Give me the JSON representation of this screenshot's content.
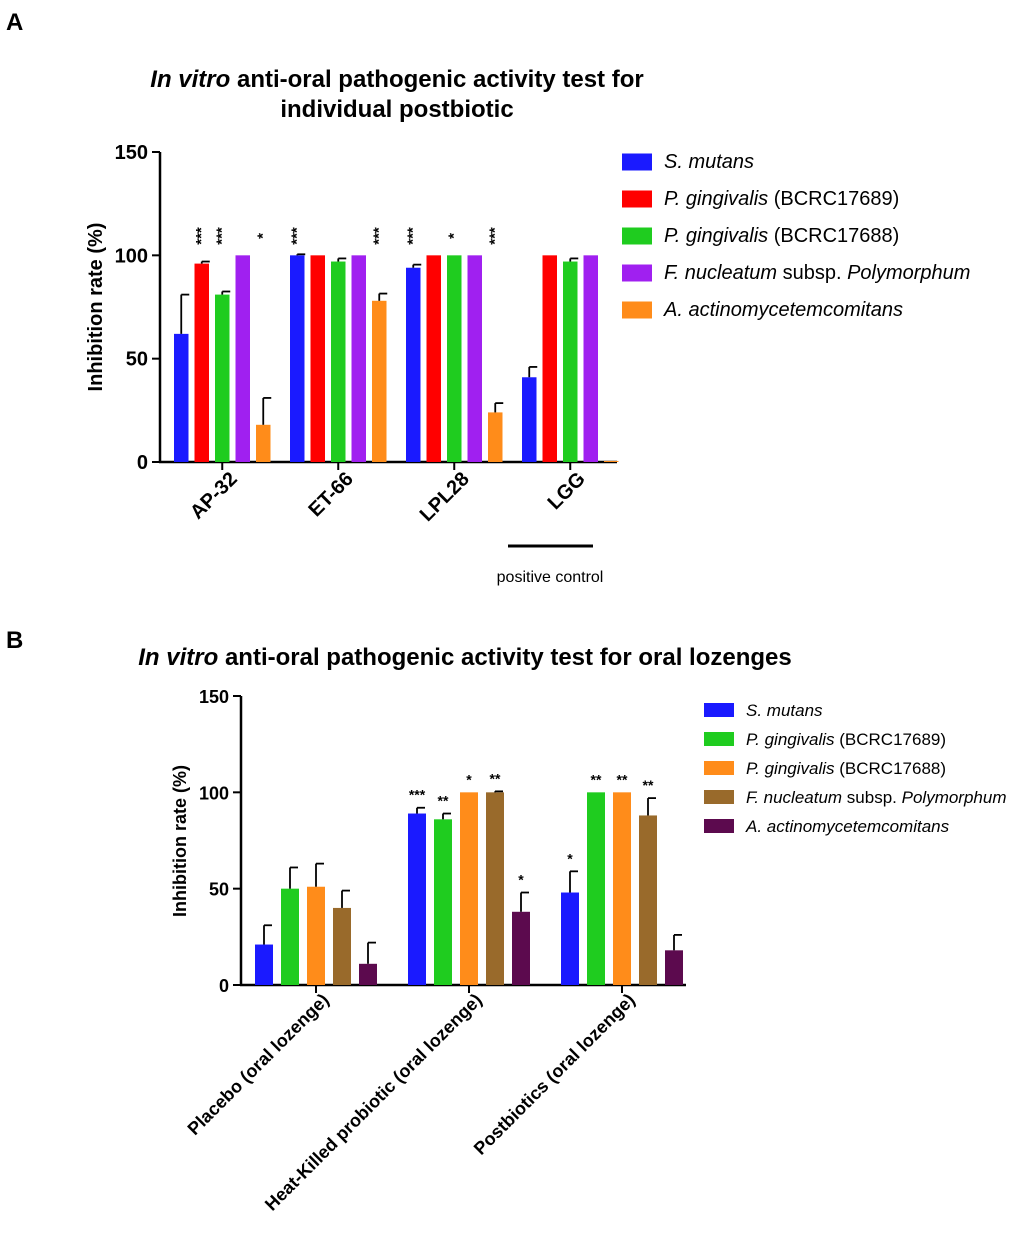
{
  "chart_data": [
    {
      "type": "bar",
      "panel": "A",
      "title_italic": "In vitro",
      "title_rest_line1": " anti-oral pathogenic activity test for",
      "title_line2": "individual postbiotic",
      "ylabel": "Inhibition rate (%)",
      "ylim": [
        0,
        150
      ],
      "yticks": [
        "0",
        "50",
        "100",
        "150"
      ],
      "categories": [
        "AP-32",
        "ET-66",
        "LPL28",
        "LGG"
      ],
      "bracket_label": "positive control",
      "series": [
        {
          "italic": "S. mutans",
          "rest": "",
          "color": "#1a1aff",
          "values": [
            62,
            100,
            94,
            41
          ],
          "errors": [
            19,
            0.5,
            1.5,
            5
          ],
          "stars": [
            "",
            "***",
            "***",
            ""
          ]
        },
        {
          "italic": "P. gingivalis",
          "rest": " (BCRC17689)",
          "color": "#ff0000",
          "values": [
            96,
            100,
            100,
            100
          ],
          "errors": [
            1,
            0,
            0,
            0
          ],
          "stars": [
            "***",
            "",
            "",
            ""
          ]
        },
        {
          "italic": "P. gingivalis",
          "rest": " (BCRC17688)",
          "color": "#1fcc1f",
          "values": [
            81,
            97,
            100,
            97
          ],
          "errors": [
            1.5,
            1.5,
            0,
            1.5
          ],
          "stars": [
            "***",
            "",
            "*",
            ""
          ]
        },
        {
          "italic": "F. nucleatum",
          "rest": " subsp. ",
          "italic2": "Polymorphum",
          "color": "#a020f0",
          "values": [
            100,
            100,
            100,
            100
          ],
          "errors": [
            0,
            0,
            0,
            0
          ],
          "stars": [
            "",
            "",
            "",
            ""
          ]
        },
        {
          "italic": "A. actinomycetemcomitans",
          "rest": "",
          "color": "#ff8c1a",
          "values": [
            18,
            78,
            24,
            0.5
          ],
          "errors": [
            13,
            3.5,
            4.5,
            0
          ],
          "stars": [
            "*",
            "***",
            "***",
            ""
          ]
        }
      ]
    },
    {
      "type": "bar",
      "panel": "B",
      "title_italic": "In vitro",
      "title_rest_line1": " anti-oral pathogenic activity test for oral lozenges",
      "ylabel": "Inhibition rate (%)",
      "ylim": [
        0,
        150
      ],
      "yticks": [
        "0",
        "50",
        "100",
        "150"
      ],
      "categories": [
        "Placebo (oral lozenge)",
        "Heat-Killed probiotic (oral lozenge)",
        "Postbiotics (oral lozenge)"
      ],
      "series": [
        {
          "italic": "S. mutans",
          "rest": "",
          "color": "#1a1aff",
          "values": [
            21,
            89,
            48
          ],
          "errors": [
            10,
            3,
            11
          ],
          "stars": [
            "",
            "***",
            "*"
          ]
        },
        {
          "italic": "P. gingivalis",
          "rest": " (BCRC17689)",
          "color": "#1fcc1f",
          "values": [
            50,
            86,
            100
          ],
          "errors": [
            11,
            3,
            0
          ],
          "stars": [
            "",
            "**",
            "**"
          ]
        },
        {
          "italic": "P. gingivalis",
          "rest": " (BCRC17688)",
          "color": "#ff8c1a",
          "values": [
            51,
            100,
            100
          ],
          "errors": [
            12,
            0,
            0
          ],
          "stars": [
            "",
            "*",
            "**"
          ]
        },
        {
          "italic": "F. nucleatum",
          "rest": " subsp. ",
          "italic2": "Polymorphum",
          "color": "#996a2b",
          "values": [
            40,
            100,
            88
          ],
          "errors": [
            9,
            0.5,
            9
          ],
          "stars": [
            "",
            "**",
            "**"
          ]
        },
        {
          "italic": "A. actinomycetemcomitans",
          "rest": "",
          "color": "#5c0a4e",
          "values": [
            11,
            38,
            18
          ],
          "errors": [
            11,
            10,
            8
          ],
          "stars": [
            "",
            "*",
            ""
          ]
        }
      ]
    }
  ],
  "panel_labels": [
    "A",
    "B"
  ]
}
